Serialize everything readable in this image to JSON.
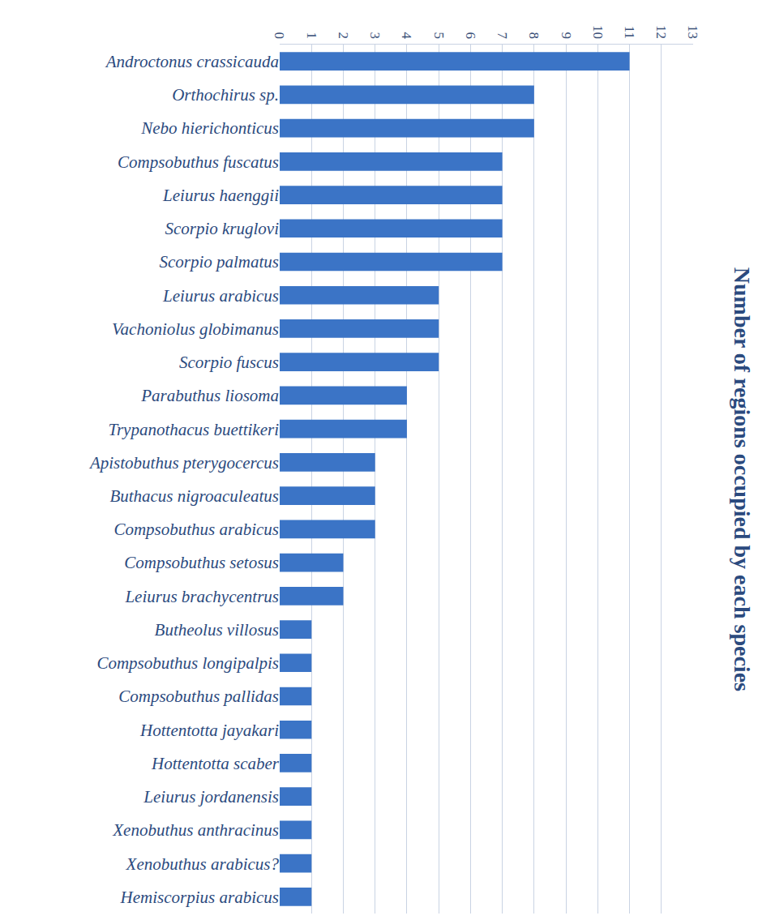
{
  "chart_data": {
    "type": "bar",
    "orientation": "horizontal",
    "title": "Number of regions occupied by each species",
    "categories": [
      "Androctonus crassicauda",
      "Orthochirus sp.",
      "Nebo hierichonticus",
      "Compsobuthus fuscatus",
      "Leiurus haenggii",
      "Scorpio kruglovi",
      "Scorpio palmatus",
      "Leiurus arabicus",
      "Vachoniolus globimanus",
      "Scorpio fuscus",
      "Parabuthus liosoma",
      "Trypanothacus buettikeri",
      "Apistobuthus pterygocercus",
      "Buthacus nigroaculeatus",
      "Compsobuthus arabicus",
      "Compsobuthus setosus",
      "Leiurus brachycentrus",
      "Butheolus villosus",
      "Compsobuthus longipalpis",
      "Compsobuthus pallidas",
      "Hottentotta jayakari",
      "Hottentotta scaber",
      "Leiurus jordanensis",
      "Xenobuthus anthracinus",
      "Xenobuthus arabicus?",
      "Hemiscorpius arabicus"
    ],
    "values": [
      11,
      8,
      8,
      7,
      7,
      7,
      7,
      5,
      5,
      5,
      4,
      4,
      3,
      3,
      3,
      2,
      2,
      1,
      1,
      1,
      1,
      1,
      1,
      1,
      1,
      1
    ],
    "color": "#3b74c6",
    "xlim": [
      0,
      13
    ],
    "xticks": [
      0,
      1,
      2,
      3,
      4,
      5,
      6,
      7,
      8,
      9,
      10,
      11,
      12,
      13
    ],
    "grid": true
  }
}
